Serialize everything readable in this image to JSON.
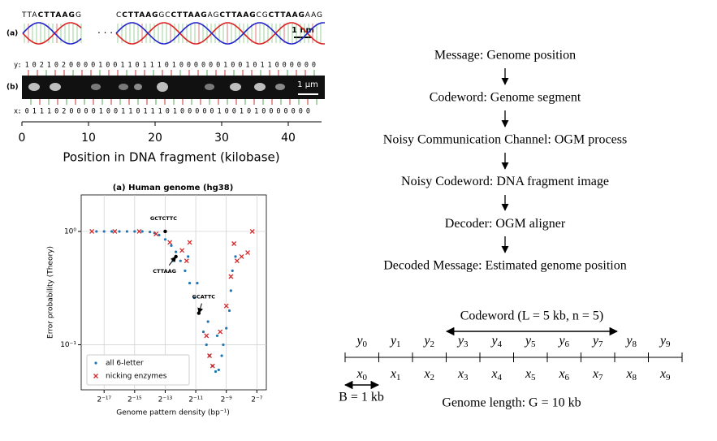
{
  "panel_dna": {
    "label_a": "(a)",
    "label_b": "(b)",
    "seq_left": [
      "TTA",
      "CTTAAG",
      "G"
    ],
    "ellipsis": "· · ·",
    "seq_right": [
      "C",
      "CTTAAG",
      "GC",
      "CTTAAG",
      "AG",
      "CTTAAG",
      "CG",
      "CTTAAG",
      "AAG"
    ],
    "scale_nm": "1 nm",
    "scale_um": "1 μm",
    "y_row": "y: 1 0 2 1 0 2 0 0 0 0 1 0 0 1 1 0 1 1 1 0 1 0 0 0 0 0 0 1 0 0 1 0 1 1 0 0 0 0 0 0",
    "x_row": "x: 0 1 1 1 0 2 0 0 0 0 1 0 0 1 1 0 1 1 1 0 1 0 0 0 0 0 1 0 0 1 0 1 0 0 0 0 0 0 0",
    "axis": {
      "xlim": [
        0,
        45
      ],
      "xticks": [
        0,
        10,
        20,
        30,
        40
      ],
      "xlabel": "Position in DNA fragment (kilobase)"
    }
  },
  "chart_data": {
    "type": "scatter",
    "title": "(a) Human genome (hg38)",
    "xlabel": "Genome pattern density (bp⁻¹)",
    "ylabel": "Error probability (Theory)",
    "xscale": "log",
    "yscale": "log",
    "grid": true,
    "legend": "lower left",
    "xlim": [
      2.7e-06,
      0.012
    ],
    "ylim": [
      0.04,
      2.1
    ],
    "xticks": [
      {
        "value": 7.62939453125e-06,
        "label": "2⁻¹⁷"
      },
      {
        "value": 3.0517578125e-05,
        "label": "2⁻¹⁵"
      },
      {
        "value": 0.0001220703125,
        "label": "2⁻¹³"
      },
      {
        "value": 0.00048828125,
        "label": "2⁻¹¹"
      },
      {
        "value": 0.001953125,
        "label": "2⁻⁹"
      },
      {
        "value": 0.0078125,
        "label": "2⁻⁷"
      }
    ],
    "yticks": [
      {
        "value": 1,
        "label": "10⁰"
      },
      {
        "value": 0.1,
        "label": "10⁻¹"
      }
    ],
    "annotations": [
      {
        "text": "GCTCTTC",
        "x": 0.0001221,
        "y": 1
      },
      {
        "text": "CTTAAG",
        "x": 0.0001983,
        "y": 0.6
      },
      {
        "text": "GCATTC",
        "x": 0.0005608,
        "y": 0.19
      }
    ],
    "series": [
      {
        "name": "all 6-letter",
        "color": "#1f77b4",
        "marker": "dot",
        "x": [
          5.395e-06,
          7.629e-06,
          1.079e-05,
          1.526e-05,
          2.158e-05,
          3.052e-05,
          4.316e-05,
          6.104e-05,
          7.515e-05,
          9.251e-05,
          0.0001221,
          0.0001611,
          0.0001983,
          0.0002441,
          0.0003005,
          0.0003701,
          0.0004555,
          0.0005608,
          0.0006905,
          0.0007933,
          0.0009112,
          0.001047,
          0.001202,
          0.001381,
          0.001587,
          0.001701,
          0.001953,
          0.002244,
          0.002405,
          0.002577,
          0.00296,
          0.0001726,
          0.0003453,
          0.0005233,
          0.0008502,
          0.001289
        ],
        "values": [
          1,
          1,
          1,
          1,
          1,
          1,
          1,
          0.99,
          0.97,
          0.93,
          0.85,
          0.75,
          0.66,
          0.55,
          0.45,
          0.35,
          0.26,
          0.19,
          0.13,
          0.1,
          0.08,
          0.065,
          0.058,
          0.06,
          0.08,
          0.1,
          0.14,
          0.2,
          0.3,
          0.45,
          0.6,
          0.55,
          0.6,
          0.35,
          0.16,
          0.12
        ]
      },
      {
        "name": "nicking enzymes",
        "color": "#d62728",
        "marker": "x",
        "x": [
          4.382e-06,
          1.24e-05,
          3.757e-05,
          8.051e-05,
          0.0001503,
          0.0002616,
          0.0003701,
          0.0003222,
          0.0007933,
          0.0009112,
          0.001047,
          0.00148,
          0.001953,
          0.002405,
          0.002762,
          0.003173,
          0.003906,
          0.005154,
          0.006346
        ],
        "values": [
          1,
          1,
          1,
          0.95,
          0.8,
          0.68,
          0.8,
          0.55,
          0.12,
          0.08,
          0.065,
          0.13,
          0.22,
          0.4,
          0.78,
          0.55,
          0.6,
          0.65,
          1
        ]
      }
    ]
  },
  "flow": {
    "steps": [
      "Message: Genome position",
      "Codeword: Genome segment",
      "Noisy Communication Channel: OGM process",
      "Noisy Codeword: DNA fragment image",
      "Decoder: OGM aligner",
      "Decoded Message: Estimated genome position"
    ]
  },
  "codeword": {
    "title": "Codeword (L = 5 kb, n = 5)",
    "y_labels": [
      "y0",
      "y1",
      "y2",
      "y3",
      "y4",
      "y5",
      "y6",
      "y7",
      "y8",
      "y9"
    ],
    "x_labels": [
      "x0",
      "x1",
      "x2",
      "x3",
      "x4",
      "x5",
      "x6",
      "x7",
      "x8",
      "x9"
    ],
    "bin": "B = 1 kb",
    "genome": "Genome length: G = 10 kb"
  }
}
